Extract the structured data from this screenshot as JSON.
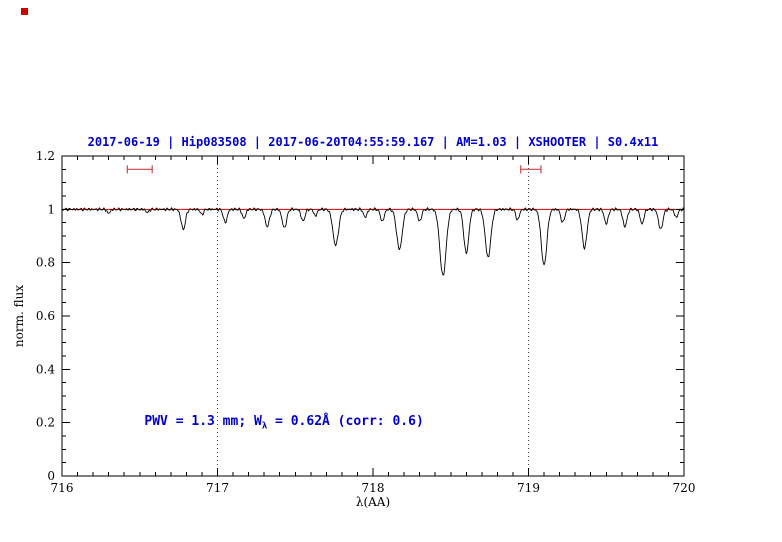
{
  "window": {
    "background": "#ffffff"
  },
  "artifact": {
    "corner_dot_color": "#cc0000"
  },
  "chart_data": {
    "type": "line",
    "title": "2017-06-19 | Hip083508 | 2017-06-20T04:55:59.167 | AM=1.03 | XSHOOTER | S0.4x11",
    "title_color": "#0000cd",
    "xlabel": "λ(AA)",
    "ylabel": "norm. flux",
    "xlim": [
      716,
      720
    ],
    "ylim": [
      0,
      1.2
    ],
    "x_major_ticks": [
      716,
      717,
      718,
      719,
      720
    ],
    "x_minor_step": 0.1,
    "y_major_ticks": [
      0,
      0.2,
      0.4,
      0.6,
      0.8,
      1,
      1.2
    ],
    "y_minor_step": 0.05,
    "grid": "off",
    "legend": "none",
    "dotted_vlines": [
      717,
      719
    ],
    "dotted_vline_color": "#444444",
    "continuum_fit": {
      "y": 1.0,
      "color": "#cc0000"
    },
    "range_marker_color": "#cc4444",
    "range_markers": [
      {
        "x1": 716.42,
        "x2": 716.58,
        "y": 1.15
      },
      {
        "x1": 718.95,
        "x2": 719.08,
        "y": 1.15
      }
    ],
    "annotation": {
      "prefix": "PWV = 1.3 mm; W",
      "sub": "λ",
      "suffix": " = 0.62Å (corr: 0.6)",
      "color": "#0000cd",
      "x": 716.53,
      "y": 0.2
    },
    "spectrum": {
      "color": "#000000",
      "continuum_level": 1.0,
      "sample_step": 0.005,
      "noise_amplitude": 0.004,
      "absorption_lines_columns": [
        "center_AA",
        "depth",
        "sigma_AA"
      ],
      "absorption_lines": [
        [
          716.3,
          0.015,
          0.01
        ],
        [
          716.55,
          0.012,
          0.01
        ],
        [
          716.78,
          0.075,
          0.014
        ],
        [
          716.9,
          0.02,
          0.01
        ],
        [
          717.05,
          0.05,
          0.012
        ],
        [
          717.17,
          0.035,
          0.011
        ],
        [
          717.32,
          0.065,
          0.014
        ],
        [
          717.43,
          0.07,
          0.014
        ],
        [
          717.55,
          0.045,
          0.012
        ],
        [
          717.63,
          0.025,
          0.01
        ],
        [
          717.76,
          0.135,
          0.018
        ],
        [
          717.95,
          0.03,
          0.011
        ],
        [
          718.06,
          0.045,
          0.012
        ],
        [
          718.17,
          0.15,
          0.018
        ],
        [
          718.3,
          0.045,
          0.012
        ],
        [
          718.45,
          0.25,
          0.02
        ],
        [
          718.6,
          0.165,
          0.016
        ],
        [
          718.74,
          0.18,
          0.018
        ],
        [
          718.93,
          0.04,
          0.011
        ],
        [
          719.1,
          0.21,
          0.018
        ],
        [
          719.22,
          0.05,
          0.012
        ],
        [
          719.36,
          0.145,
          0.016
        ],
        [
          719.5,
          0.055,
          0.012
        ],
        [
          719.62,
          0.065,
          0.013
        ],
        [
          719.73,
          0.055,
          0.012
        ],
        [
          719.85,
          0.075,
          0.014
        ],
        [
          719.95,
          0.03,
          0.011
        ]
      ]
    }
  }
}
